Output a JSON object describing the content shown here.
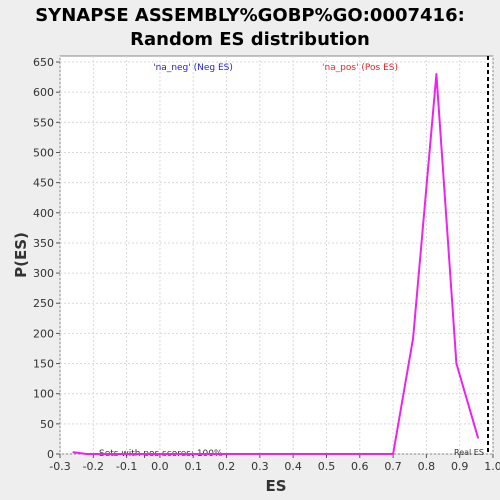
{
  "chart_data": {
    "type": "line",
    "title_lines": [
      "SYNAPSE ASSEMBLY%GOBP%GO:0007416:",
      "Random ES distribution"
    ],
    "xlabel": "ES",
    "ylabel": "P(ES)",
    "xlim": [
      -0.3,
      1.0
    ],
    "ylim": [
      0,
      660
    ],
    "x_ticks": [
      "-0.3",
      "-0.2",
      "-0.1",
      "0.0",
      "0.1",
      "0.2",
      "0.3",
      "0.4",
      "0.5",
      "0.6",
      "0.7",
      "0.8",
      "0.9",
      "1.0"
    ],
    "y_ticks": [
      "0",
      "50",
      "100",
      "150",
      "200",
      "250",
      "300",
      "350",
      "400",
      "450",
      "500",
      "550",
      "600",
      "650"
    ],
    "grid": true,
    "annotations": {
      "neg_label": "'na_neg' (Neg ES)",
      "pos_label": "'na_pos' (Pos ES)",
      "sets_label": "Sets with pos scores: 100%",
      "real_es_label": "Real ES"
    },
    "real_es": 0.985,
    "series": [
      {
        "color": "#ee22ee",
        "x": [
          -0.26,
          -0.22,
          -0.2,
          0.0,
          0.2,
          0.4,
          0.6,
          0.7,
          0.76,
          0.83,
          0.89,
          0.955
        ],
        "y": [
          3,
          0,
          0,
          0,
          0,
          0,
          0,
          0,
          192,
          630,
          150,
          27
        ]
      }
    ],
    "colors": {
      "neg": "#2222dd",
      "pos": "#ee2222",
      "real_es": "#000000",
      "grid": "#d9d9d9"
    }
  }
}
